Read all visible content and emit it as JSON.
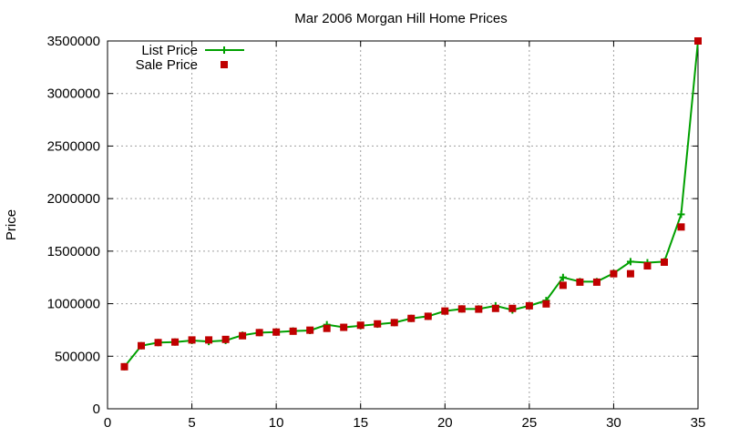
{
  "chart_data": {
    "type": "line",
    "title": "Mar 2006 Morgan Hill Home Prices",
    "xlabel": "",
    "ylabel": "Price",
    "xlim": [
      0,
      35
    ],
    "ylim": [
      0,
      3500000
    ],
    "x_ticks": [
      0,
      5,
      10,
      15,
      20,
      25,
      30,
      35
    ],
    "y_ticks": [
      0,
      500000,
      1000000,
      1500000,
      2000000,
      2500000,
      3000000,
      3500000
    ],
    "grid": true,
    "legend_position": "top-left",
    "x": [
      1,
      2,
      3,
      4,
      5,
      6,
      7,
      8,
      9,
      10,
      11,
      12,
      13,
      14,
      15,
      16,
      17,
      18,
      19,
      20,
      21,
      22,
      23,
      24,
      25,
      26,
      27,
      28,
      29,
      30,
      31,
      32,
      33,
      34,
      35
    ],
    "series": [
      {
        "name": "List Price",
        "style": "line-with-plus-markers",
        "color": "#00a000",
        "values": [
          400000,
          600000,
          630000,
          635000,
          650000,
          640000,
          650000,
          700000,
          725000,
          730000,
          740000,
          745000,
          800000,
          775000,
          790000,
          805000,
          820000,
          860000,
          880000,
          930000,
          950000,
          950000,
          980000,
          940000,
          980000,
          1030000,
          1250000,
          1210000,
          1210000,
          1290000,
          1400000,
          1390000,
          1400000,
          1850000,
          3500000
        ]
      },
      {
        "name": "Sale Price",
        "style": "square-markers",
        "color": "#c00000",
        "values": [
          400000,
          600000,
          630000,
          635000,
          655000,
          655000,
          660000,
          695000,
          725000,
          730000,
          738000,
          748000,
          765000,
          775000,
          795000,
          808000,
          820000,
          860000,
          880000,
          930000,
          950000,
          948000,
          955000,
          955000,
          980000,
          998000,
          1175000,
          1205000,
          1205000,
          1285000,
          1285000,
          1360000,
          1395000,
          1730000,
          3500000
        ]
      }
    ]
  }
}
